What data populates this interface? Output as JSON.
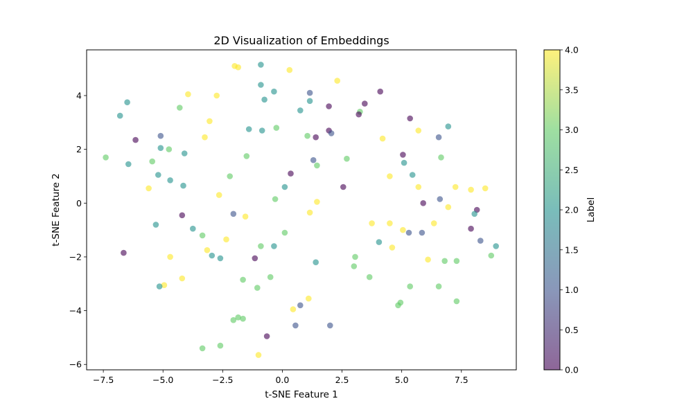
{
  "colors": {
    "point_alpha": 0.6,
    "viridis": [
      "#440154",
      "#3b528b",
      "#21918c",
      "#5ec962",
      "#fde725"
    ]
  },
  "chart_data": {
    "type": "scatter",
    "title": "2D Visualization of Embeddings",
    "xlabel": "t-SNE Feature 1",
    "ylabel": "t-SNE Feature 2",
    "colorbar_label": "Label",
    "xlim": [
      -8.2,
      9.8
    ],
    "ylim": [
      -6.2,
      5.7
    ],
    "xticks": [
      -7.5,
      -5.0,
      -2.5,
      0.0,
      2.5,
      5.0,
      7.5
    ],
    "xtick_labels": [
      "−7.5",
      "−5.0",
      "−2.5",
      "0.0",
      "2.5",
      "5.0",
      "7.5"
    ],
    "yticks": [
      -6,
      -4,
      -2,
      0,
      2,
      4
    ],
    "ytick_labels": [
      "−6",
      "−4",
      "−2",
      "0",
      "2",
      "4"
    ],
    "colorbar_range": [
      0,
      4
    ],
    "colorbar_ticks": [
      0.0,
      0.5,
      1.0,
      1.5,
      2.0,
      2.5,
      3.0,
      3.5,
      4.0
    ],
    "colorbar_tick_labels": [
      "0.0",
      "0.5",
      "1.0",
      "1.5",
      "2.0",
      "2.5",
      "3.0",
      "3.5",
      "4.0"
    ],
    "grid": false,
    "points": [
      {
        "x": -2.0,
        "y": 5.1,
        "label": 4
      },
      {
        "x": -1.85,
        "y": 5.05,
        "label": 4
      },
      {
        "x": 0.3,
        "y": 4.95,
        "label": 4
      },
      {
        "x": -0.9,
        "y": 5.15,
        "label": 2
      },
      {
        "x": 2.3,
        "y": 4.55,
        "label": 4
      },
      {
        "x": -0.9,
        "y": 4.4,
        "label": 2
      },
      {
        "x": 1.15,
        "y": 4.1,
        "label": 1
      },
      {
        "x": -3.95,
        "y": 4.05,
        "label": 4
      },
      {
        "x": -2.75,
        "y": 4.0,
        "label": 4
      },
      {
        "x": -0.35,
        "y": 4.15,
        "label": 2
      },
      {
        "x": -0.75,
        "y": 3.85,
        "label": 2
      },
      {
        "x": 1.15,
        "y": 3.8,
        "label": 2
      },
      {
        "x": 4.1,
        "y": 4.15,
        "label": 0
      },
      {
        "x": -6.5,
        "y": 3.75,
        "label": 2
      },
      {
        "x": -4.3,
        "y": 3.55,
        "label": 3
      },
      {
        "x": 0.75,
        "y": 3.45,
        "label": 2
      },
      {
        "x": 1.95,
        "y": 3.6,
        "label": 0
      },
      {
        "x": 3.45,
        "y": 3.7,
        "label": 0
      },
      {
        "x": 3.25,
        "y": 3.4,
        "label": 3
      },
      {
        "x": 3.2,
        "y": 3.3,
        "label": 0
      },
      {
        "x": -6.8,
        "y": 3.25,
        "label": 2
      },
      {
        "x": -3.05,
        "y": 3.05,
        "label": 4
      },
      {
        "x": 5.35,
        "y": 3.15,
        "label": 0
      },
      {
        "x": 6.95,
        "y": 2.85,
        "label": 2
      },
      {
        "x": -1.4,
        "y": 2.75,
        "label": 2
      },
      {
        "x": -0.85,
        "y": 2.7,
        "label": 2
      },
      {
        "x": -0.25,
        "y": 2.8,
        "label": 3
      },
      {
        "x": 1.95,
        "y": 2.7,
        "label": 0
      },
      {
        "x": 2.05,
        "y": 2.6,
        "label": 1
      },
      {
        "x": 5.7,
        "y": 2.7,
        "label": 4
      },
      {
        "x": -6.15,
        "y": 2.35,
        "label": 0
      },
      {
        "x": -5.1,
        "y": 2.5,
        "label": 1
      },
      {
        "x": -3.25,
        "y": 2.45,
        "label": 4
      },
      {
        "x": 1.05,
        "y": 2.5,
        "label": 3
      },
      {
        "x": 1.4,
        "y": 2.45,
        "label": 0
      },
      {
        "x": 4.2,
        "y": 2.4,
        "label": 4
      },
      {
        "x": 6.55,
        "y": 2.45,
        "label": 1
      },
      {
        "x": -5.1,
        "y": 2.05,
        "label": 2
      },
      {
        "x": -4.75,
        "y": 2.0,
        "label": 3
      },
      {
        "x": -7.4,
        "y": 1.7,
        "label": 3
      },
      {
        "x": -4.1,
        "y": 1.85,
        "label": 2
      },
      {
        "x": -1.5,
        "y": 1.75,
        "label": 3
      },
      {
        "x": 5.05,
        "y": 1.8,
        "label": 0
      },
      {
        "x": -5.45,
        "y": 1.55,
        "label": 3
      },
      {
        "x": -6.45,
        "y": 1.45,
        "label": 2
      },
      {
        "x": 1.3,
        "y": 1.6,
        "label": 1
      },
      {
        "x": 1.45,
        "y": 1.4,
        "label": 3
      },
      {
        "x": 2.7,
        "y": 1.65,
        "label": 3
      },
      {
        "x": 5.1,
        "y": 1.5,
        "label": 2
      },
      {
        "x": 6.65,
        "y": 1.7,
        "label": 3
      },
      {
        "x": -5.2,
        "y": 1.05,
        "label": 2
      },
      {
        "x": 0.35,
        "y": 1.1,
        "label": 0
      },
      {
        "x": 4.5,
        "y": 1.0,
        "label": 4
      },
      {
        "x": 5.45,
        "y": 1.05,
        "label": 2
      },
      {
        "x": -4.7,
        "y": 0.85,
        "label": 2
      },
      {
        "x": -2.2,
        "y": 1.0,
        "label": 3
      },
      {
        "x": -5.6,
        "y": 0.55,
        "label": 4
      },
      {
        "x": -4.15,
        "y": 0.65,
        "label": 2
      },
      {
        "x": 0.1,
        "y": 0.6,
        "label": 2
      },
      {
        "x": 2.55,
        "y": 0.6,
        "label": 0
      },
      {
        "x": 5.7,
        "y": 0.6,
        "label": 4
      },
      {
        "x": 7.25,
        "y": 0.6,
        "label": 4
      },
      {
        "x": 7.9,
        "y": 0.5,
        "label": 4
      },
      {
        "x": 8.5,
        "y": 0.55,
        "label": 4
      },
      {
        "x": -2.65,
        "y": 0.3,
        "label": 4
      },
      {
        "x": -0.3,
        "y": 0.15,
        "label": 3
      },
      {
        "x": 1.45,
        "y": 0.05,
        "label": 4
      },
      {
        "x": 6.6,
        "y": 0.15,
        "label": 1
      },
      {
        "x": 5.9,
        "y": 0.0,
        "label": 0
      },
      {
        "x": 6.95,
        "y": -0.15,
        "label": 4
      },
      {
        "x": 8.15,
        "y": -0.25,
        "label": 0
      },
      {
        "x": 1.15,
        "y": -0.35,
        "label": 4
      },
      {
        "x": -4.2,
        "y": -0.45,
        "label": 0
      },
      {
        "x": -2.05,
        "y": -0.4,
        "label": 1
      },
      {
        "x": -1.55,
        "y": -0.5,
        "label": 4
      },
      {
        "x": 8.05,
        "y": -0.4,
        "label": 2
      },
      {
        "x": -5.3,
        "y": -0.8,
        "label": 2
      },
      {
        "x": 3.75,
        "y": -0.75,
        "label": 4
      },
      {
        "x": 4.5,
        "y": -0.75,
        "label": 4
      },
      {
        "x": 6.35,
        "y": -0.75,
        "label": 4
      },
      {
        "x": -3.75,
        "y": -0.95,
        "label": 2
      },
      {
        "x": 5.05,
        "y": -1.0,
        "label": 4
      },
      {
        "x": 7.9,
        "y": -0.95,
        "label": 0
      },
      {
        "x": 5.3,
        "y": -1.1,
        "label": 1
      },
      {
        "x": 5.85,
        "y": -1.1,
        "label": 1
      },
      {
        "x": 0.1,
        "y": -1.1,
        "label": 3
      },
      {
        "x": -3.35,
        "y": -1.2,
        "label": 3
      },
      {
        "x": -2.35,
        "y": -1.35,
        "label": 4
      },
      {
        "x": 8.3,
        "y": -1.4,
        "label": 1
      },
      {
        "x": 4.05,
        "y": -1.45,
        "label": 2
      },
      {
        "x": -0.9,
        "y": -1.6,
        "label": 3
      },
      {
        "x": -0.35,
        "y": -1.6,
        "label": 2
      },
      {
        "x": 8.95,
        "y": -1.6,
        "label": 2
      },
      {
        "x": 4.6,
        "y": -1.65,
        "label": 4
      },
      {
        "x": -3.15,
        "y": -1.75,
        "label": 4
      },
      {
        "x": -6.65,
        "y": -1.85,
        "label": 0
      },
      {
        "x": -2.95,
        "y": -1.95,
        "label": 2
      },
      {
        "x": -2.6,
        "y": -2.05,
        "label": 2
      },
      {
        "x": -4.7,
        "y": -2.0,
        "label": 4
      },
      {
        "x": -1.15,
        "y": -2.05,
        "label": 0
      },
      {
        "x": 3.05,
        "y": -2.0,
        "label": 3
      },
      {
        "x": 6.1,
        "y": -2.1,
        "label": 4
      },
      {
        "x": 1.4,
        "y": -2.2,
        "label": 2
      },
      {
        "x": 6.8,
        "y": -2.15,
        "label": 3
      },
      {
        "x": 7.3,
        "y": -2.15,
        "label": 3
      },
      {
        "x": 8.75,
        "y": -1.95,
        "label": 3
      },
      {
        "x": 3.0,
        "y": -2.35,
        "label": 3
      },
      {
        "x": -4.2,
        "y": -2.8,
        "label": 4
      },
      {
        "x": -1.65,
        "y": -2.85,
        "label": 3
      },
      {
        "x": -0.5,
        "y": -2.75,
        "label": 3
      },
      {
        "x": 3.65,
        "y": -2.75,
        "label": 3
      },
      {
        "x": -4.95,
        "y": -3.05,
        "label": 4
      },
      {
        "x": -5.15,
        "y": -3.1,
        "label": 2
      },
      {
        "x": -1.05,
        "y": -3.15,
        "label": 3
      },
      {
        "x": 5.35,
        "y": -3.1,
        "label": 3
      },
      {
        "x": 6.55,
        "y": -3.1,
        "label": 3
      },
      {
        "x": 1.1,
        "y": -3.55,
        "label": 4
      },
      {
        "x": 7.3,
        "y": -3.65,
        "label": 3
      },
      {
        "x": 0.75,
        "y": -3.8,
        "label": 1
      },
      {
        "x": 4.85,
        "y": -3.8,
        "label": 3
      },
      {
        "x": 4.95,
        "y": -3.7,
        "label": 3
      },
      {
        "x": 0.45,
        "y": -3.95,
        "label": 4
      },
      {
        "x": -1.85,
        "y": -4.25,
        "label": 3
      },
      {
        "x": -1.65,
        "y": -4.3,
        "label": 3
      },
      {
        "x": -2.05,
        "y": -4.35,
        "label": 3
      },
      {
        "x": 0.55,
        "y": -4.55,
        "label": 1
      },
      {
        "x": 2.0,
        "y": -4.55,
        "label": 1
      },
      {
        "x": -0.65,
        "y": -4.95,
        "label": 0
      },
      {
        "x": -2.6,
        "y": -5.3,
        "label": 3
      },
      {
        "x": -3.35,
        "y": -5.4,
        "label": 3
      },
      {
        "x": -1.0,
        "y": -5.65,
        "label": 4
      }
    ]
  }
}
